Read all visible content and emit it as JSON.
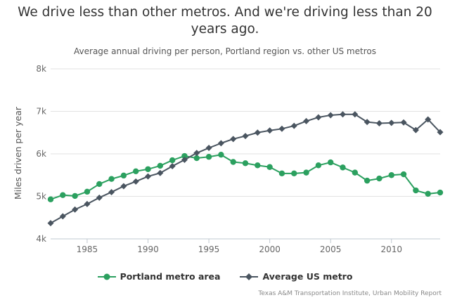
{
  "chart_data": {
    "type": "line",
    "title": "We drive less than other metros. And we're driving less than 20 years ago.",
    "subtitle": "Average annual driving per person, Portland region vs. other US metros",
    "ylabel": "Miles driven per year",
    "xlabel": "",
    "xlim": [
      1982,
      2014
    ],
    "ylim": [
      4000,
      8000
    ],
    "x_ticks": [
      1985,
      1990,
      1995,
      2000,
      2005,
      2010
    ],
    "x_tick_labels": [
      "1985",
      "1990",
      "1995",
      "2000",
      "2005",
      "2010"
    ],
    "y_ticks": [
      4000,
      5000,
      6000,
      7000,
      8000
    ],
    "y_tick_labels": [
      "4k",
      "5k",
      "6k",
      "7k",
      "8k"
    ],
    "grid": "horizontal",
    "legend_position": "bottom",
    "x": [
      1982,
      1983,
      1984,
      1985,
      1986,
      1987,
      1988,
      1989,
      1990,
      1991,
      1992,
      1993,
      1994,
      1995,
      1996,
      1997,
      1998,
      1999,
      2000,
      2001,
      2002,
      2003,
      2004,
      2005,
      2006,
      2007,
      2008,
      2009,
      2010,
      2011,
      2012,
      2013,
      2014
    ],
    "series": [
      {
        "name": "Portland metro area",
        "color": "#2ba05f",
        "marker": "circle",
        "values": [
          4930,
          5030,
          5010,
          5110,
          5290,
          5410,
          5490,
          5590,
          5640,
          5720,
          5850,
          5950,
          5900,
          5930,
          5980,
          5810,
          5780,
          5730,
          5690,
          5540,
          5540,
          5560,
          5730,
          5800,
          5680,
          5560,
          5370,
          5420,
          5500,
          5520,
          5140,
          5060,
          5090
        ]
      },
      {
        "name": "Average US metro",
        "color": "#4a5560",
        "marker": "diamond",
        "values": [
          4370,
          4530,
          4690,
          4820,
          4970,
          5100,
          5240,
          5350,
          5470,
          5550,
          5710,
          5860,
          6020,
          6140,
          6250,
          6350,
          6420,
          6500,
          6550,
          6590,
          6660,
          6770,
          6860,
          6910,
          6930,
          6930,
          6750,
          6720,
          6730,
          6740,
          6560,
          6810,
          6510
        ]
      }
    ],
    "credit": "Texas A&M Transportation Institute, Urban Mobility Report"
  }
}
